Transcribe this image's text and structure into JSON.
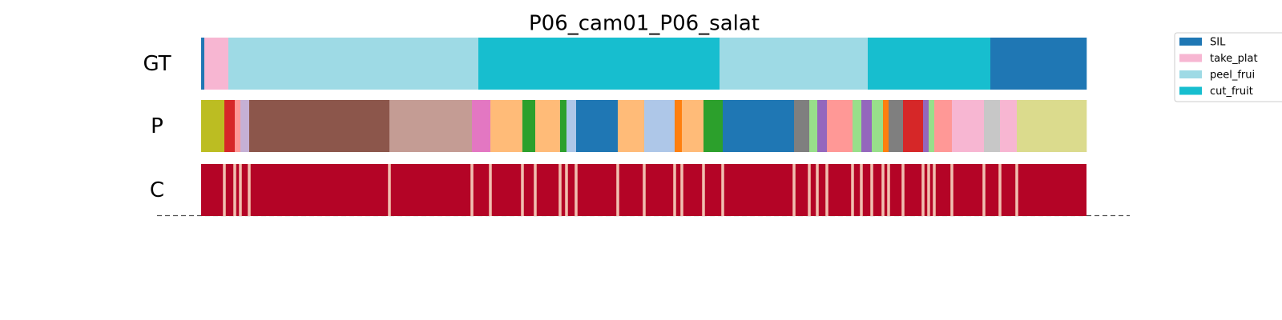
{
  "chart_data": {
    "type": "segmentation",
    "title": "P06_cam01_P06_salat",
    "legend": [
      {
        "name": "SIL",
        "color": "#1f77b4"
      },
      {
        "name": "take_plat",
        "color": "#f7b6d2"
      },
      {
        "name": "peel_frui",
        "color": "#9edae5"
      },
      {
        "name": "cut_fruit",
        "color": "#17becf"
      }
    ],
    "rows": [
      {
        "label": "GT",
        "segments": [
          {
            "color": "#1f77b4",
            "length": 4
          },
          {
            "color": "#f7b6d2",
            "length": 30
          },
          {
            "color": "#9edae5",
            "length": 312
          },
          {
            "color": "#17becf",
            "length": 301
          },
          {
            "color": "#9edae5",
            "length": 185
          },
          {
            "color": "#17becf",
            "length": 153
          },
          {
            "color": "#1f77b4",
            "length": 120
          }
        ]
      },
      {
        "label": "P",
        "segments": [
          {
            "color": "#bcbd22",
            "length": 29
          },
          {
            "color": "#d62728",
            "length": 13
          },
          {
            "color": "#ff9896",
            "length": 7
          },
          {
            "color": "#c5b0d5",
            "length": 11
          },
          {
            "color": "#8c564b",
            "length": 175
          },
          {
            "color": "#c49c94",
            "length": 103
          },
          {
            "color": "#e377c2",
            "length": 23
          },
          {
            "color": "#ffbb78",
            "length": 40
          },
          {
            "color": "#2ca02c",
            "length": 16
          },
          {
            "color": "#ffbb78",
            "length": 31
          },
          {
            "color": "#2ca02c",
            "length": 8
          },
          {
            "color": "#aec7e8",
            "length": 12
          },
          {
            "color": "#1f77b4",
            "length": 52
          },
          {
            "color": "#ffbb78",
            "length": 33
          },
          {
            "color": "#aec7e8",
            "length": 38
          },
          {
            "color": "#ff7f0e",
            "length": 9
          },
          {
            "color": "#ffbb78",
            "length": 27
          },
          {
            "color": "#2ca02c",
            "length": 24
          },
          {
            "color": "#1f77b4",
            "length": 89
          },
          {
            "color": "#7f7f7f",
            "length": 19
          },
          {
            "color": "#98df8a",
            "length": 10
          },
          {
            "color": "#9467bd",
            "length": 12
          },
          {
            "color": "#ff9896",
            "length": 32
          },
          {
            "color": "#98df8a",
            "length": 11
          },
          {
            "color": "#9467bd",
            "length": 13
          },
          {
            "color": "#98df8a",
            "length": 14
          },
          {
            "color": "#ff7f0e",
            "length": 7
          },
          {
            "color": "#7f7f7f",
            "length": 18
          },
          {
            "color": "#d62728",
            "length": 25
          },
          {
            "color": "#9467bd",
            "length": 7
          },
          {
            "color": "#98df8a",
            "length": 7
          },
          {
            "color": "#ff9896",
            "length": 22
          },
          {
            "color": "#f7b6d2",
            "length": 40
          },
          {
            "color": "#c7c7c7",
            "length": 20
          },
          {
            "color": "#f7b6d2",
            "length": 21
          },
          {
            "color": "#dbdb8d",
            "length": 87
          }
        ]
      },
      {
        "label": "C",
        "color": "#b40426"
      }
    ]
  }
}
